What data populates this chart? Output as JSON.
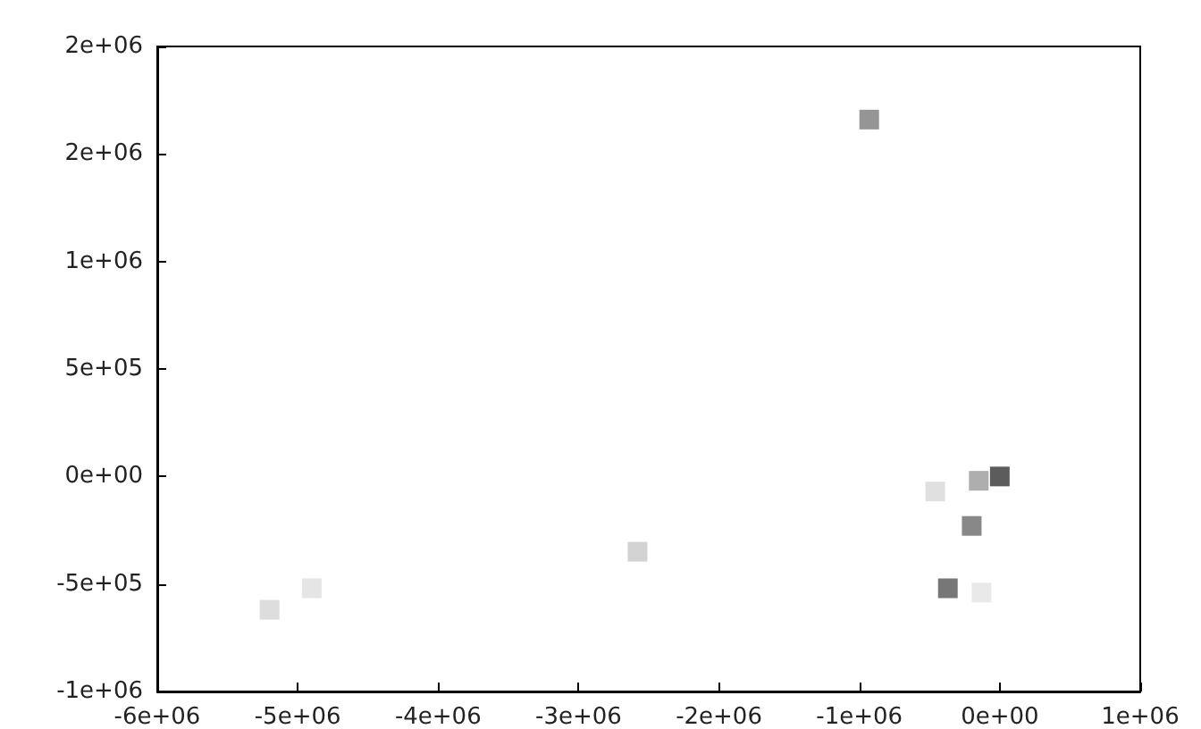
{
  "chart_data": {
    "type": "scatter",
    "marker": "square",
    "grid": false,
    "x": [
      -930000,
      0,
      -150000,
      -460000,
      -200000,
      -370000,
      -130000,
      -2580000,
      -4900000,
      -5200000
    ],
    "values": [
      1660000,
      0,
      -20000,
      -70000,
      -230000,
      -520000,
      -540000,
      -350000,
      -520000,
      -620000
    ],
    "colors": [
      "#7a7a7a",
      "#333333",
      "#9a9a9a",
      "#d8d8d8",
      "#6a6a6a",
      "#555555",
      "#e4e4e4",
      "#c8c8c8",
      "#dedede",
      "#d4d4d4"
    ],
    "xlim": [
      -6000000,
      1000000
    ],
    "xticks": [
      {
        "value": -6000000,
        "label": "-6e+06"
      },
      {
        "value": -5000000,
        "label": "-5e+06"
      },
      {
        "value": -4000000,
        "label": "-4e+06"
      },
      {
        "value": -3000000,
        "label": "-3e+06"
      },
      {
        "value": -2000000,
        "label": "-2e+06"
      },
      {
        "value": -1000000,
        "label": "-1e+06"
      },
      {
        "value": 0,
        "label": "0e+00"
      },
      {
        "value": 1000000,
        "label": "1e+06"
      }
    ],
    "ylim": [
      -1000000,
      2000000
    ],
    "yticks": [
      {
        "value": -1000000,
        "label": "-1e+06"
      },
      {
        "value": -500000,
        "label": "-5e+05"
      },
      {
        "value": 0,
        "label": "0e+00"
      },
      {
        "value": 500000,
        "label": "5e+05"
      },
      {
        "value": 1000000,
        "label": "1e+06"
      },
      {
        "value": 1500000,
        "label": "2e+06"
      },
      {
        "value": 2000000,
        "label": "2e+06"
      }
    ]
  }
}
